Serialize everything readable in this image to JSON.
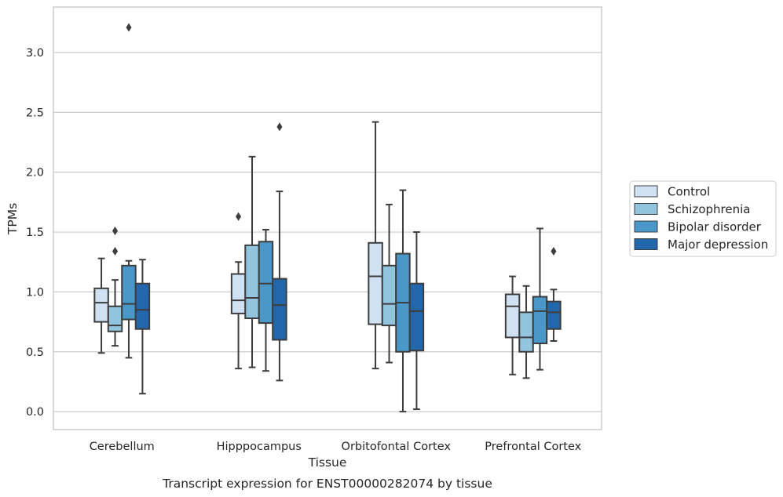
{
  "chart_data": {
    "type": "box",
    "title": "Transcript expression for ENST00000282074 by tissue",
    "xlabel": "Tissue",
    "ylabel": "TPMs",
    "ylim": [
      -0.15,
      3.38
    ],
    "yticks": [
      "0.0",
      "0.5",
      "1.0",
      "1.5",
      "2.0",
      "2.5",
      "3.0"
    ],
    "grid": "horizontal",
    "legend_position": "right",
    "categories": [
      "Cerebellum",
      "Hipppocampus",
      "Orbitofontal Cortex",
      "Prefrontal Cortex"
    ],
    "series": [
      {
        "name": "Control",
        "color": "#cfe1f2",
        "boxes": [
          {
            "whislo": 0.49,
            "q1": 0.75,
            "med": 0.91,
            "q3": 1.03,
            "whishi": 1.28,
            "fliers": []
          },
          {
            "whislo": 0.36,
            "q1": 0.82,
            "med": 0.93,
            "q3": 1.15,
            "whishi": 1.25,
            "fliers": [
              1.63
            ]
          },
          {
            "whislo": 0.36,
            "q1": 0.73,
            "med": 1.13,
            "q3": 1.41,
            "whishi": 2.42,
            "fliers": []
          },
          {
            "whislo": 0.31,
            "q1": 0.62,
            "med": 0.88,
            "q3": 0.98,
            "whishi": 1.13,
            "fliers": []
          }
        ]
      },
      {
        "name": "Schizophrenia",
        "color": "#93c4de",
        "boxes": [
          {
            "whislo": 0.55,
            "q1": 0.67,
            "med": 0.72,
            "q3": 0.88,
            "whishi": 1.1,
            "fliers": [
              1.51,
              1.34
            ]
          },
          {
            "whislo": 0.37,
            "q1": 0.78,
            "med": 0.95,
            "q3": 1.39,
            "whishi": 2.13,
            "fliers": []
          },
          {
            "whislo": 0.41,
            "q1": 0.72,
            "med": 0.9,
            "q3": 1.22,
            "whishi": 1.73,
            "fliers": []
          },
          {
            "whislo": 0.28,
            "q1": 0.5,
            "med": 0.62,
            "q3": 0.83,
            "whishi": 1.05,
            "fliers": []
          }
        ]
      },
      {
        "name": "Bipolar disorder",
        "color": "#4a98c9",
        "boxes": [
          {
            "whislo": 0.45,
            "q1": 0.77,
            "med": 0.9,
            "q3": 1.22,
            "whishi": 1.26,
            "fliers": [
              3.21
            ]
          },
          {
            "whislo": 0.34,
            "q1": 0.74,
            "med": 1.07,
            "q3": 1.42,
            "whishi": 1.52,
            "fliers": []
          },
          {
            "whislo": 0.0,
            "q1": 0.5,
            "med": 0.91,
            "q3": 1.32,
            "whishi": 1.85,
            "fliers": []
          },
          {
            "whislo": 0.35,
            "q1": 0.57,
            "med": 0.84,
            "q3": 0.96,
            "whishi": 1.53,
            "fliers": []
          }
        ]
      },
      {
        "name": "Major depression",
        "color": "#2266ac",
        "boxes": [
          {
            "whislo": 0.15,
            "q1": 0.69,
            "med": 0.85,
            "q3": 1.07,
            "whishi": 1.27,
            "fliers": []
          },
          {
            "whislo": 0.26,
            "q1": 0.6,
            "med": 0.89,
            "q3": 1.11,
            "whishi": 1.84,
            "fliers": [
              2.38
            ]
          },
          {
            "whislo": 0.02,
            "q1": 0.51,
            "med": 0.84,
            "q3": 1.07,
            "whishi": 1.5,
            "fliers": []
          },
          {
            "whislo": 0.59,
            "q1": 0.69,
            "med": 0.83,
            "q3": 0.92,
            "whishi": 1.02,
            "fliers": [
              1.34
            ]
          }
        ]
      }
    ]
  }
}
